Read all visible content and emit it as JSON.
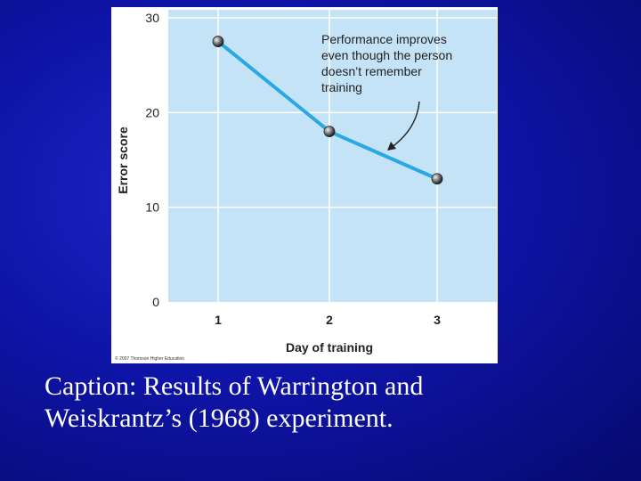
{
  "chart_data": {
    "type": "line",
    "title": "",
    "xlabel": "Day of training",
    "ylabel": "Error score",
    "categories": [
      "1",
      "2",
      "3"
    ],
    "x": [
      1,
      2,
      3
    ],
    "series": [
      {
        "name": "Error score",
        "values": [
          27.5,
          18,
          13
        ]
      }
    ],
    "ylim": [
      0,
      30
    ],
    "yticks": [
      "0",
      "10",
      "20",
      "30"
    ],
    "grid": true,
    "annotation": {
      "lines": [
        "Performance improves",
        "even though the person",
        "doesn’t remember",
        "training"
      ]
    },
    "credit": "© 2007 Thomson Higher Education"
  },
  "caption": {
    "line1": "Caption: Results of Warrington and",
    "line2": "Weiskrantz’s (1968) experiment."
  },
  "colors": {
    "plot_bg": "#c4e3f7",
    "line": "#29a8e2",
    "grid": "#ffffff",
    "text": "#222222",
    "slide_bg": "#1218b0"
  }
}
